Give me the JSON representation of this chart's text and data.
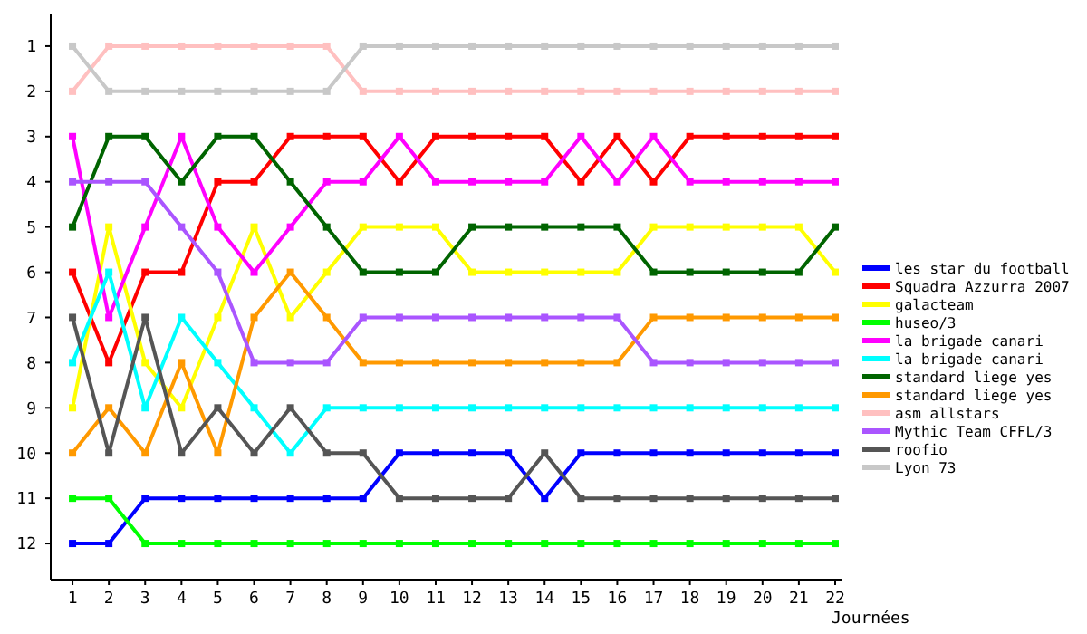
{
  "chart_data": {
    "type": "line",
    "xlabel": "Journées",
    "x": [
      1,
      2,
      3,
      4,
      5,
      6,
      7,
      8,
      9,
      10,
      11,
      12,
      13,
      14,
      15,
      16,
      17,
      18,
      19,
      20,
      21,
      22
    ],
    "xlim": [
      0.4,
      22.2
    ],
    "xticks": [
      1,
      2,
      3,
      4,
      5,
      6,
      7,
      8,
      9,
      10,
      11,
      12,
      13,
      14,
      15,
      16,
      17,
      18,
      19,
      20,
      21,
      22
    ],
    "ylim": [
      12.8,
      0.3
    ],
    "yticks": [
      1,
      2,
      3,
      4,
      5,
      6,
      7,
      8,
      9,
      10,
      11,
      12
    ],
    "grid": false,
    "legend": "right",
    "marker": "square",
    "line_style": "solid",
    "series": [
      {
        "name": "les star du football",
        "color": "#0000ff",
        "values": [
          12,
          12,
          11,
          11,
          11,
          11,
          11,
          11,
          11,
          10,
          10,
          10,
          10,
          11,
          10,
          10,
          10,
          10,
          10,
          10,
          10,
          10
        ]
      },
      {
        "name": "Squadra Azzurra 2007",
        "color": "#ff0000",
        "values": [
          6,
          8,
          6,
          6,
          4,
          4,
          3,
          3,
          3,
          4,
          3,
          3,
          3,
          3,
          4,
          3,
          4,
          3,
          3,
          3,
          3,
          3
        ]
      },
      {
        "name": "galacteam",
        "color": "#ffff00",
        "values": [
          9,
          5,
          8,
          9,
          7,
          5,
          7,
          6,
          5,
          5,
          5,
          6,
          6,
          6,
          6,
          6,
          5,
          5,
          5,
          5,
          5,
          6
        ]
      },
      {
        "name": "huseo/3",
        "color": "#00ff00",
        "values": [
          11,
          11,
          12,
          12,
          12,
          12,
          12,
          12,
          12,
          12,
          12,
          12,
          12,
          12,
          12,
          12,
          12,
          12,
          12,
          12,
          12,
          12
        ]
      },
      {
        "name": "la brigade canari",
        "color": "#ff00ff",
        "values": [
          3,
          7,
          5,
          3,
          5,
          6,
          5,
          4,
          4,
          3,
          4,
          4,
          4,
          4,
          3,
          4,
          3,
          4,
          4,
          4,
          4,
          4
        ]
      },
      {
        "name": "la brigade canari",
        "color": "#00ffff",
        "values": [
          8,
          6,
          9,
          7,
          8,
          9,
          10,
          9,
          9,
          9,
          9,
          9,
          9,
          9,
          9,
          9,
          9,
          9,
          9,
          9,
          9,
          9
        ]
      },
      {
        "name": "standard liege yes",
        "color": "#006400",
        "values": [
          5,
          3,
          3,
          4,
          3,
          3,
          4,
          5,
          6,
          6,
          6,
          5,
          5,
          5,
          5,
          5,
          6,
          6,
          6,
          6,
          6,
          5
        ]
      },
      {
        "name": "standard liege yes",
        "color": "#ff9900",
        "values": [
          10,
          9,
          10,
          8,
          10,
          7,
          6,
          7,
          8,
          8,
          8,
          8,
          8,
          8,
          8,
          8,
          7,
          7,
          7,
          7,
          7,
          7
        ]
      },
      {
        "name": "asm allstars",
        "color": "#ffc0c0",
        "values": [
          2,
          1,
          1,
          1,
          1,
          1,
          1,
          1,
          2,
          2,
          2,
          2,
          2,
          2,
          2,
          2,
          2,
          2,
          2,
          2,
          2,
          2
        ]
      },
      {
        "name": "Mythic Team CFFL/3",
        "color": "#aa55ff",
        "values": [
          4,
          4,
          4,
          5,
          6,
          8,
          8,
          8,
          7,
          7,
          7,
          7,
          7,
          7,
          7,
          7,
          8,
          8,
          8,
          8,
          8,
          8
        ]
      },
      {
        "name": "roofio",
        "color": "#555555",
        "values": [
          7,
          10,
          7,
          10,
          9,
          10,
          9,
          10,
          10,
          11,
          11,
          11,
          11,
          10,
          11,
          11,
          11,
          11,
          11,
          11,
          11,
          11
        ]
      },
      {
        "name": "Lyon_73",
        "color": "#c8c8c8",
        "values": [
          1,
          2,
          2,
          2,
          2,
          2,
          2,
          2,
          1,
          1,
          1,
          1,
          1,
          1,
          1,
          1,
          1,
          1,
          1,
          1,
          1,
          1
        ]
      }
    ]
  }
}
